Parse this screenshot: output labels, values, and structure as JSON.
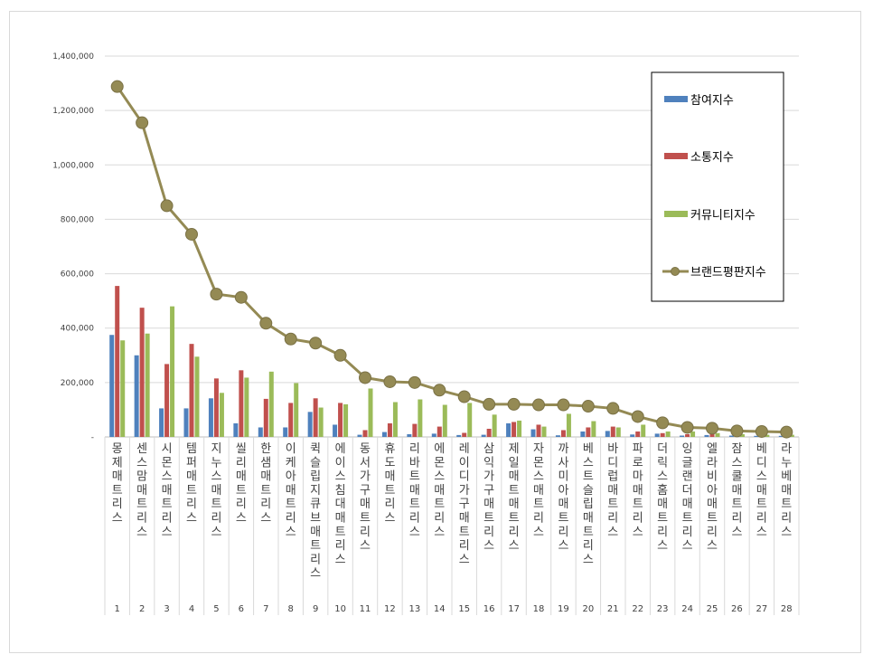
{
  "chart_data": {
    "type": "bar",
    "title": "",
    "xlabel": "",
    "ylabel": "",
    "ylim": [
      0,
      1400000
    ],
    "yticks": [
      0,
      200000,
      400000,
      600000,
      800000,
      1000000,
      1200000,
      1400000
    ],
    "ytick_labels": [
      "-",
      "200,000",
      "400,000",
      "600,000",
      "800,000",
      "1,000,000",
      "1,200,000",
      "1,400,000"
    ],
    "grid": true,
    "legend_position": "top-right",
    "categories": [
      "몽제매트리스",
      "센스맘매트리스",
      "시몬스매트리스",
      "템퍼매트리스",
      "지누스매트리스",
      "씰리매트리스",
      "한샘매트리스",
      "이케아매트리스",
      "퀵슬립지큐브매트리스",
      "에이스침대매트리스",
      "동서가구매트리스",
      "휴도매트리스",
      "리바트매트리스",
      "에몬스매트리스",
      "레이디가구매트리스",
      "삼익가구매트리스",
      "제일매트매트리스",
      "자몬스매트리스",
      "까사미아매트리스",
      "베스트슬립매트리스",
      "바디럽매트리스",
      "파로마매트리스",
      "더릭스홈매트리스",
      "잉글랜더매트리스",
      "엘라비아매트리스",
      "잠스쿨매트리스",
      "베디스매트리스",
      "라누베매트리스"
    ],
    "ranks": [
      "1",
      "2",
      "3",
      "4",
      "5",
      "6",
      "7",
      "8",
      "9",
      "10",
      "11",
      "12",
      "13",
      "14",
      "15",
      "16",
      "17",
      "18",
      "19",
      "20",
      "21",
      "22",
      "23",
      "24",
      "25",
      "26",
      "27",
      "28"
    ],
    "series": [
      {
        "name": "참여지수",
        "kind": "bar",
        "color": "#4f81bd",
        "values": [
          375000,
          300000,
          105000,
          105000,
          142000,
          50000,
          35000,
          35000,
          92000,
          45000,
          8000,
          18000,
          10000,
          12000,
          7000,
          8000,
          50000,
          28000,
          6000,
          20000,
          22000,
          9000,
          12000,
          5000,
          7000,
          5000,
          4000,
          4000
        ]
      },
      {
        "name": "소통지수",
        "kind": "bar",
        "color": "#c0504d",
        "values": [
          555000,
          475000,
          268000,
          342000,
          215000,
          245000,
          140000,
          125000,
          142000,
          125000,
          25000,
          50000,
          48000,
          38000,
          15000,
          30000,
          55000,
          45000,
          25000,
          35000,
          38000,
          20000,
          14000,
          10000,
          10000,
          8000,
          7000,
          6000
        ]
      },
      {
        "name": "커뮤니티지수",
        "kind": "bar",
        "color": "#9bbb59",
        "values": [
          355000,
          380000,
          480000,
          295000,
          162000,
          218000,
          240000,
          198000,
          108000,
          120000,
          178000,
          128000,
          138000,
          118000,
          125000,
          82000,
          60000,
          38000,
          85000,
          58000,
          35000,
          45000,
          20000,
          20000,
          14000,
          10000,
          8000,
          8000
        ]
      },
      {
        "name": "브랜드평판지수",
        "kind": "line",
        "color": "#948a54",
        "values": [
          1288000,
          1155000,
          850000,
          745000,
          525000,
          513000,
          418000,
          360000,
          345000,
          300000,
          218000,
          203000,
          200000,
          172000,
          148000,
          120000,
          120000,
          118000,
          118000,
          113000,
          105000,
          75000,
          52000,
          35000,
          32000,
          22000,
          20000,
          18000
        ]
      }
    ]
  }
}
